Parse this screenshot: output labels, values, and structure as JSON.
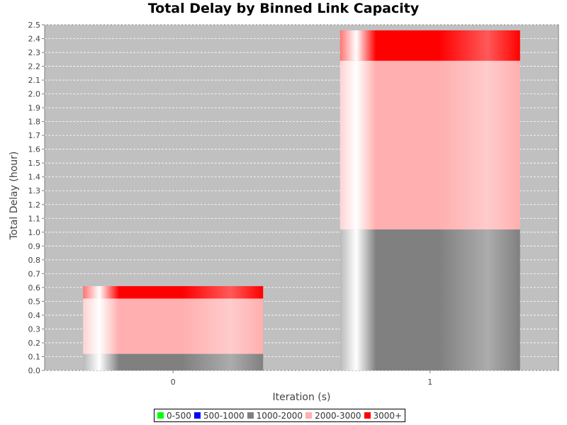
{
  "chart_data": {
    "type": "bar",
    "stacked": true,
    "title": "Total Delay by Binned Link Capacity",
    "xlabel": "Iteration (s)",
    "ylabel": "Total Delay (hour)",
    "categories": [
      "0",
      "1"
    ],
    "ylim": [
      0,
      2.5
    ],
    "yticks": [
      "0.0",
      "0.1",
      "0.2",
      "0.3",
      "0.4",
      "0.5",
      "0.6",
      "0.7",
      "0.8",
      "0.9",
      "1.0",
      "1.1",
      "1.2",
      "1.3",
      "1.4",
      "1.5",
      "1.6",
      "1.7",
      "1.8",
      "1.9",
      "2.0",
      "2.1",
      "2.2",
      "2.3",
      "2.4",
      "2.5"
    ],
    "grid": true,
    "legend_position": "bottom",
    "background_color": "#c0c0c0",
    "series": [
      {
        "name": "0-500",
        "color": "#00ff00",
        "values": [
          0,
          0
        ]
      },
      {
        "name": "500-1000",
        "color": "#0000ff",
        "values": [
          0,
          0
        ]
      },
      {
        "name": "1000-2000",
        "color": "#808080",
        "values": [
          0.12,
          1.02
        ]
      },
      {
        "name": "2000-3000",
        "color": "#ffafaf",
        "values": [
          0.4,
          1.22
        ]
      },
      {
        "name": "3000+",
        "color": "#ff0000",
        "values": [
          0.09,
          0.22
        ]
      }
    ]
  }
}
